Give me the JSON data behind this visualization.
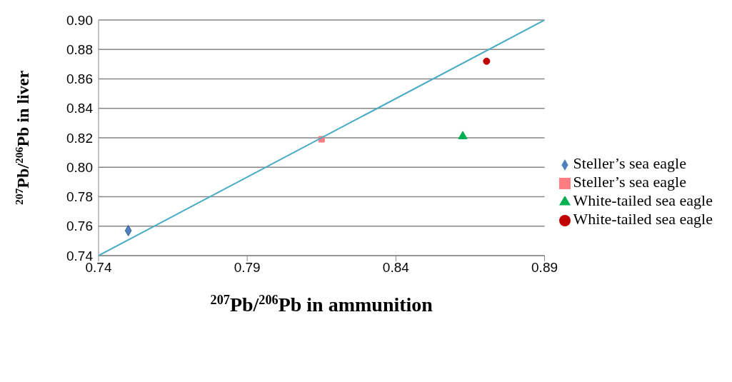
{
  "chart_data": {
    "type": "scatter",
    "xlabel": "$^{207}$Pb/$^{206}$Pb in ammunition",
    "ylabel": "$^{207}$Pb/$^{206}$Pb in liver",
    "xlim": [
      0.74,
      0.89
    ],
    "xticks": [
      0.74,
      0.79,
      0.84,
      0.89
    ],
    "ylim": [
      0.74,
      0.9
    ],
    "yticks": [
      0.74,
      0.76,
      0.78,
      {
        "value": 0.8,
        "label": "0.80"
      },
      0.82,
      0.84,
      0.86,
      0.88,
      {
        "value": 0.9,
        "label": "0.90"
      }
    ],
    "grid": "y",
    "legend": "right",
    "series": [
      {
        "name": "Steller’s sea eagle",
        "color": "#4f81bd",
        "marker": "diamond",
        "x": [
          0.75
        ],
        "values": [
          0.757
        ]
      },
      {
        "name": "Steller’s sea eagle",
        "color": "#ff7c80",
        "marker": "square",
        "x": [
          0.815
        ],
        "values": [
          0.819
        ]
      },
      {
        "name": "White-tailed sea eagle",
        "color": "#00b050",
        "marker": "triangle",
        "x": [
          0.8625
        ],
        "values": [
          0.821
        ]
      },
      {
        "name": "White-tailed sea eagle",
        "color": "#c00000",
        "marker": "circle",
        "x": [
          0.8705
        ],
        "values": [
          0.872
        ]
      },
      {
        "type": "line",
        "color": "#4bacc6",
        "x": [
          0.74,
          0.89
        ],
        "values": [
          0.74,
          0.9
        ]
      }
    ]
  }
}
